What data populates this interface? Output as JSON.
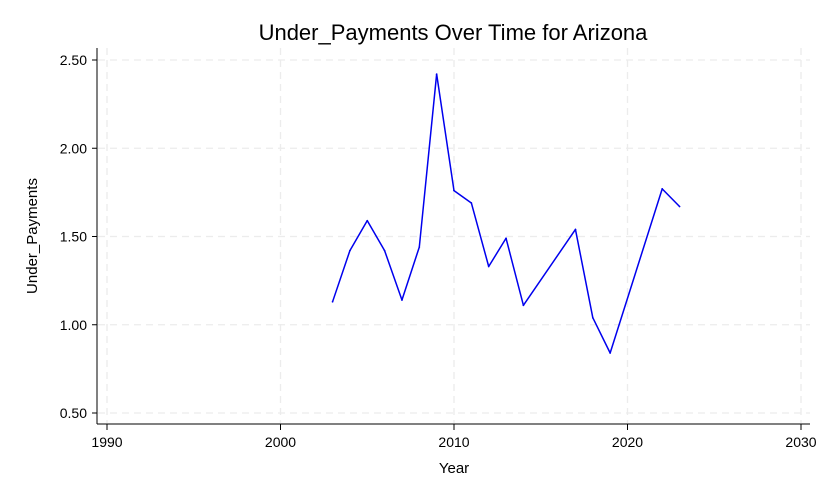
{
  "chart_data": {
    "type": "line",
    "title": "Under_Payments Over Time for Arizona",
    "xlabel": "Year",
    "ylabel": "Under_Payments",
    "xlim": [
      1990,
      2030
    ],
    "ylim": [
      0.5,
      2.5
    ],
    "x_ticks": [
      1990,
      2000,
      2010,
      2020,
      2030
    ],
    "y_ticks": [
      "0.50",
      "1.00",
      "1.50",
      "2.00",
      "2.50"
    ],
    "grid": true,
    "series": [
      {
        "color": "#0000ee",
        "points": [
          {
            "x": 2003,
            "y": 1.13
          },
          {
            "x": 2004,
            "y": 1.42
          },
          {
            "x": 2005,
            "y": 1.59
          },
          {
            "x": 2006,
            "y": 1.42
          },
          {
            "x": 2007,
            "y": 1.14
          },
          {
            "x": 2008,
            "y": 1.44
          },
          {
            "x": 2009,
            "y": 2.42
          },
          {
            "x": 2010,
            "y": 1.76
          },
          {
            "x": 2011,
            "y": 1.69
          },
          {
            "x": 2012,
            "y": 1.33
          },
          {
            "x": 2013,
            "y": 1.49
          },
          {
            "x": 2014,
            "y": 1.11
          },
          {
            "x": 2017,
            "y": 1.54
          },
          {
            "x": 2018,
            "y": 1.04
          },
          {
            "x": 2019,
            "y": 0.84
          },
          {
            "x": 2022,
            "y": 1.77
          },
          {
            "x": 2023,
            "y": 1.67
          }
        ]
      }
    ]
  }
}
